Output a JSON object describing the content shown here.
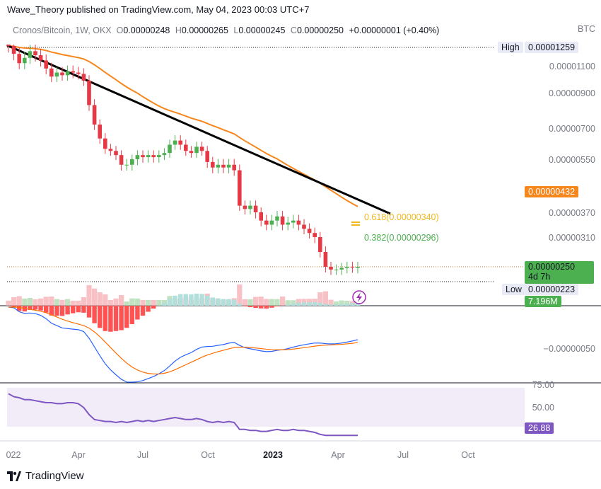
{
  "header": {
    "publish_line": "Wave_Theory published on TradingView.com, May 04, 2023 00:03 UTC+7"
  },
  "legend": {
    "symbol": "Cronos/Bitcoin, 1W, OKX",
    "o_label": "O",
    "o_value": "0.00000248",
    "h_label": "H",
    "h_value": "0.00000265",
    "l_label": "L",
    "l_value": "0.00000245",
    "c_label": "C",
    "c_value": "0.00000250",
    "change": "+0.00000001 (+0.40%)"
  },
  "price_axis": {
    "currency": "BTC",
    "ticks": [
      "0.00001100",
      "0.00000900",
      "0.00000700",
      "0.00000550",
      "0.00000370",
      "0.00000310"
    ],
    "high_label": "High",
    "high_value": "0.00001259",
    "low_label": "Low",
    "low_value": "0.00000223",
    "ma_value": "0.00000432",
    "last_price": "0.00000250",
    "countdown": "4d 7h",
    "volume_value": "7.196M",
    "macd_tick": "−0.00000050",
    "rsi_ticks": [
      "75.00",
      "50.00"
    ],
    "rsi_value": "26.88"
  },
  "fib": {
    "f618": "0.618(0.00000340)",
    "f382": "0.382(0.00000296)"
  },
  "time_axis": {
    "labels": [
      "022",
      "Apr",
      "Jul",
      "Oct",
      "2023",
      "Apr",
      "Jul",
      "Oct"
    ]
  },
  "colors": {
    "up": "#4caf50",
    "down": "#e53945",
    "ma": "#f7861c",
    "macd": "#2962ff",
    "signal": "#ff6d00",
    "rsi": "#7e57c2",
    "fib618": "#f2b91a",
    "fib382": "#4caf50"
  },
  "branding": {
    "name": "TradingView"
  },
  "chart_data": {
    "type": "candlestick",
    "symbol": "Cronos/Bitcoin",
    "interval": "1W",
    "exchange": "OKX",
    "currency": "BTC",
    "last": {
      "open": 2.48e-06,
      "high": 2.65e-06,
      "low": 2.45e-06,
      "close": 2.5e-06
    },
    "period_high": 1.259e-05,
    "period_low": 2.23e-06,
    "moving_average": 4.32e-06,
    "fibonacci": [
      {
        "level": 0.618,
        "price": 3.4e-06
      },
      {
        "level": 0.382,
        "price": 2.96e-06
      }
    ],
    "volume": "7.196M",
    "rsi": 26.88,
    "x_labels": [
      "022",
      "Apr",
      "Jul",
      "Oct",
      "2023",
      "Apr",
      "Jul",
      "Oct"
    ],
    "closes": [
      1.25e-05,
      1.19e-05,
      1.12e-05,
      1.16e-05,
      1.21e-05,
      1.18e-05,
      1.14e-05,
      1.08e-05,
      1.02e-05,
      1.05e-05,
      1.03e-05,
      1.06e-05,
      1.05e-05,
      1.04e-05,
      9.9e-06,
      8.3e-06,
      7.2e-06,
      6.5e-06,
      6e-06,
      5.9e-06,
      5.7e-06,
      5.3e-06,
      5.3e-06,
      5.5e-06,
      5.7e-06,
      5.6e-06,
      5.7e-06,
      5.6e-06,
      5.7e-06,
      5.8e-06,
      6.2e-06,
      6.4e-06,
      6.2e-06,
      5.9e-06,
      5.8e-06,
      6.1e-06,
      5.9e-06,
      5.4e-06,
      5.2e-06,
      5.3e-06,
      5.2e-06,
      5.3e-06,
      5.1e-06,
      3.9e-06,
      3.8e-06,
      3.9e-06,
      3.7e-06,
      3.5e-06,
      3.4e-06,
      3.5e-06,
      3.6e-06,
      3.4e-06,
      3.45e-06,
      3.5e-06,
      3.4e-06,
      3.3e-06,
      3.2e-06,
      3.1e-06,
      2.8e-06,
      2.5e-06,
      2.45e-06,
      2.45e-06,
      2.48e-06,
      2.5e-06,
      2.49e-06,
      2.5e-06
    ],
    "rsi_series": [
      69,
      66,
      65,
      63,
      63,
      62,
      61,
      60,
      60,
      59,
      59,
      60,
      60,
      59,
      55,
      48,
      43,
      42,
      41,
      41,
      40,
      41,
      40,
      41,
      42,
      41,
      42,
      41,
      42,
      43,
      44,
      45,
      44,
      43,
      43,
      44,
      43,
      41,
      40,
      41,
      40,
      41,
      40,
      33,
      33,
      32,
      32,
      31,
      31,
      32,
      33,
      32,
      32,
      33,
      32,
      32,
      31,
      30,
      28,
      27,
      27,
      27,
      27,
      27,
      27,
      27
    ]
  }
}
